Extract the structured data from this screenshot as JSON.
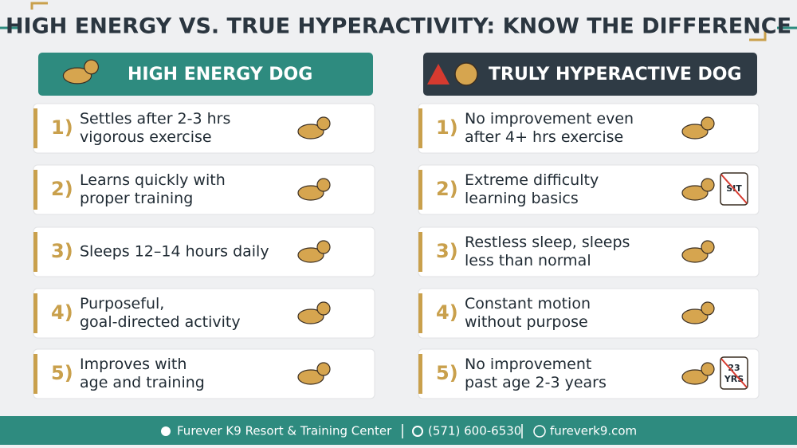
{
  "title": "HIGH ENERGY VS. TRUE HYPERACTIVITY: KNOW THE DIFFERENCE",
  "columns": [
    {
      "header": "HIGH ENERGY DOG",
      "items": [
        {
          "number": "1)",
          "lines": [
            "Settles after 2-3 hrs",
            "vigorous exercise"
          ]
        },
        {
          "number": "2)",
          "lines": [
            "Learns quickly with",
            "proper training"
          ]
        },
        {
          "number": "3)",
          "lines": [
            "Sleeps 12–14 hours daily"
          ]
        },
        {
          "number": "4)",
          "lines": [
            "Purposeful,",
            "goal-directed activity"
          ]
        },
        {
          "number": "5)",
          "lines": [
            "Improves with",
            "age and training"
          ]
        }
      ]
    },
    {
      "header": "TRULY HYPERACTIVE DOG",
      "items": [
        {
          "number": "1)",
          "lines": [
            "No improvement even",
            "after 4+ hrs exercise"
          ]
        },
        {
          "number": "2)",
          "lines": [
            "Extreme difficulty",
            "learning basics"
          ],
          "icon_text": [
            "SIT"
          ]
        },
        {
          "number": "3)",
          "lines": [
            "Restless sleep, sleeps",
            "less than normal"
          ]
        },
        {
          "number": "4)",
          "lines": [
            "Constant motion",
            "without purpose"
          ]
        },
        {
          "number": "5)",
          "lines": [
            "No improvement",
            "past age 2-3 years"
          ],
          "icon_text": [
            "23",
            "YRS"
          ]
        }
      ]
    }
  ],
  "footer": [
    "Furever K9 Resort & Training Center",
    "(571) 600-6530",
    "fureverk9.com"
  ]
}
